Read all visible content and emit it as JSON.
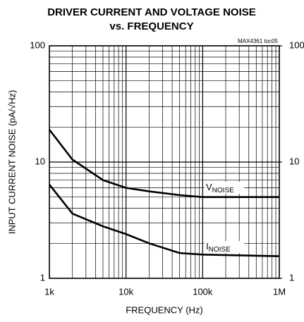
{
  "chart_data": {
    "type": "line",
    "title": "DRIVER CURRENT AND VOLTAGE NOISE",
    "subtitle": "vs. FREQUENCY",
    "annotation": "MAX4361 toc05",
    "x_label": "FREQUENCY (Hz)",
    "y_label": "INPUT CURRENT NOISE (pA/√Hz)",
    "x": [
      1000,
      2000,
      5000,
      10000,
      20000,
      50000,
      100000,
      1000000
    ],
    "series": [
      {
        "name": "VNOISE",
        "color": "#000000",
        "axis": "y2",
        "values": [
          19,
          10.5,
          7,
          6,
          5.6,
          5.2,
          5.0,
          5.0
        ]
      },
      {
        "name": "INOISE",
        "color": "#000000",
        "values": [
          6.4,
          3.6,
          2.8,
          2.4,
          2.0,
          1.65,
          1.6,
          1.55
        ]
      }
    ],
    "xlim": [
      1000,
      1000000
    ],
    "xticks": [
      {
        "value": 1000,
        "label": "1k"
      },
      {
        "value": 10000,
        "label": "10k"
      },
      {
        "value": 100000,
        "label": "100k"
      },
      {
        "value": 1000000,
        "label": "1M"
      }
    ],
    "ylim": [
      1,
      100
    ],
    "yticks": [
      1,
      10,
      100
    ],
    "y2lim": [
      1,
      100
    ],
    "y2ticks": [
      1,
      10,
      100
    ],
    "xlog": true,
    "ylog": true,
    "grid": true
  }
}
